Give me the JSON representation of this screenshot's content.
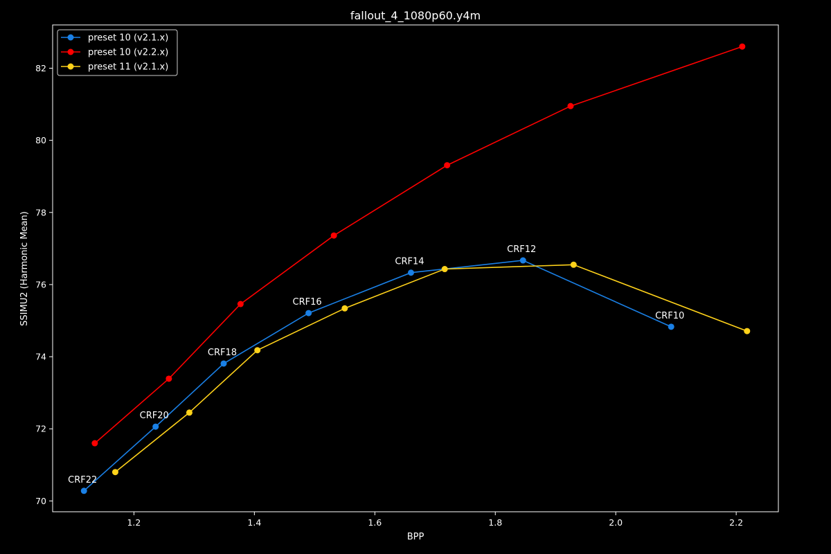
{
  "chart_data": {
    "type": "line",
    "title": "fallout_4_1080p60.y4m",
    "xlabel": "BPP",
    "ylabel": "SSIMU2 (Harmonic Mean)",
    "xlim": [
      1.065,
      2.27
    ],
    "ylim": [
      69.7,
      83.2
    ],
    "xticks": [
      1.2,
      1.4,
      1.6,
      1.8,
      2.0,
      2.2
    ],
    "yticks": [
      70,
      72,
      74,
      76,
      78,
      80,
      82
    ],
    "xtick_labels": [
      "1.2",
      "1.4",
      "1.6",
      "1.8",
      "2.0",
      "2.2"
    ],
    "ytick_labels": [
      "70",
      "72",
      "74",
      "76",
      "78",
      "80",
      "82"
    ],
    "grid": false,
    "legend_position": "top-left",
    "background": "#000000",
    "series": [
      {
        "name": "preset 10 (v2.1.x)",
        "color": "#1a80e6",
        "x": [
          1.117,
          1.236,
          1.349,
          1.49,
          1.66,
          1.846,
          2.092
        ],
        "y": [
          70.28,
          72.06,
          73.81,
          75.21,
          76.33,
          76.67,
          74.83
        ]
      },
      {
        "name": "preset 10 (v2.2.x)",
        "color": "#ff0000",
        "x": [
          1.135,
          1.258,
          1.377,
          1.532,
          1.72,
          1.925,
          2.21
        ],
        "y": [
          71.6,
          73.39,
          75.46,
          77.36,
          79.31,
          80.95,
          82.6
        ]
      },
      {
        "name": "preset 11 (v2.1.x)",
        "color": "#ffd21a",
        "x": [
          1.169,
          1.292,
          1.405,
          1.55,
          1.716,
          1.93,
          2.218
        ],
        "y": [
          70.8,
          72.45,
          74.18,
          75.34,
          76.43,
          76.55,
          74.71
        ]
      }
    ],
    "annotations": [
      {
        "text": "CRF22",
        "x": 1.117,
        "y": 70.28
      },
      {
        "text": "CRF20",
        "x": 1.236,
        "y": 72.06
      },
      {
        "text": "CRF18",
        "x": 1.349,
        "y": 73.81
      },
      {
        "text": "CRF16",
        "x": 1.49,
        "y": 75.21
      },
      {
        "text": "CRF14",
        "x": 1.66,
        "y": 76.33
      },
      {
        "text": "CRF12",
        "x": 1.846,
        "y": 76.67
      },
      {
        "text": "CRF10",
        "x": 2.092,
        "y": 74.83
      }
    ]
  }
}
